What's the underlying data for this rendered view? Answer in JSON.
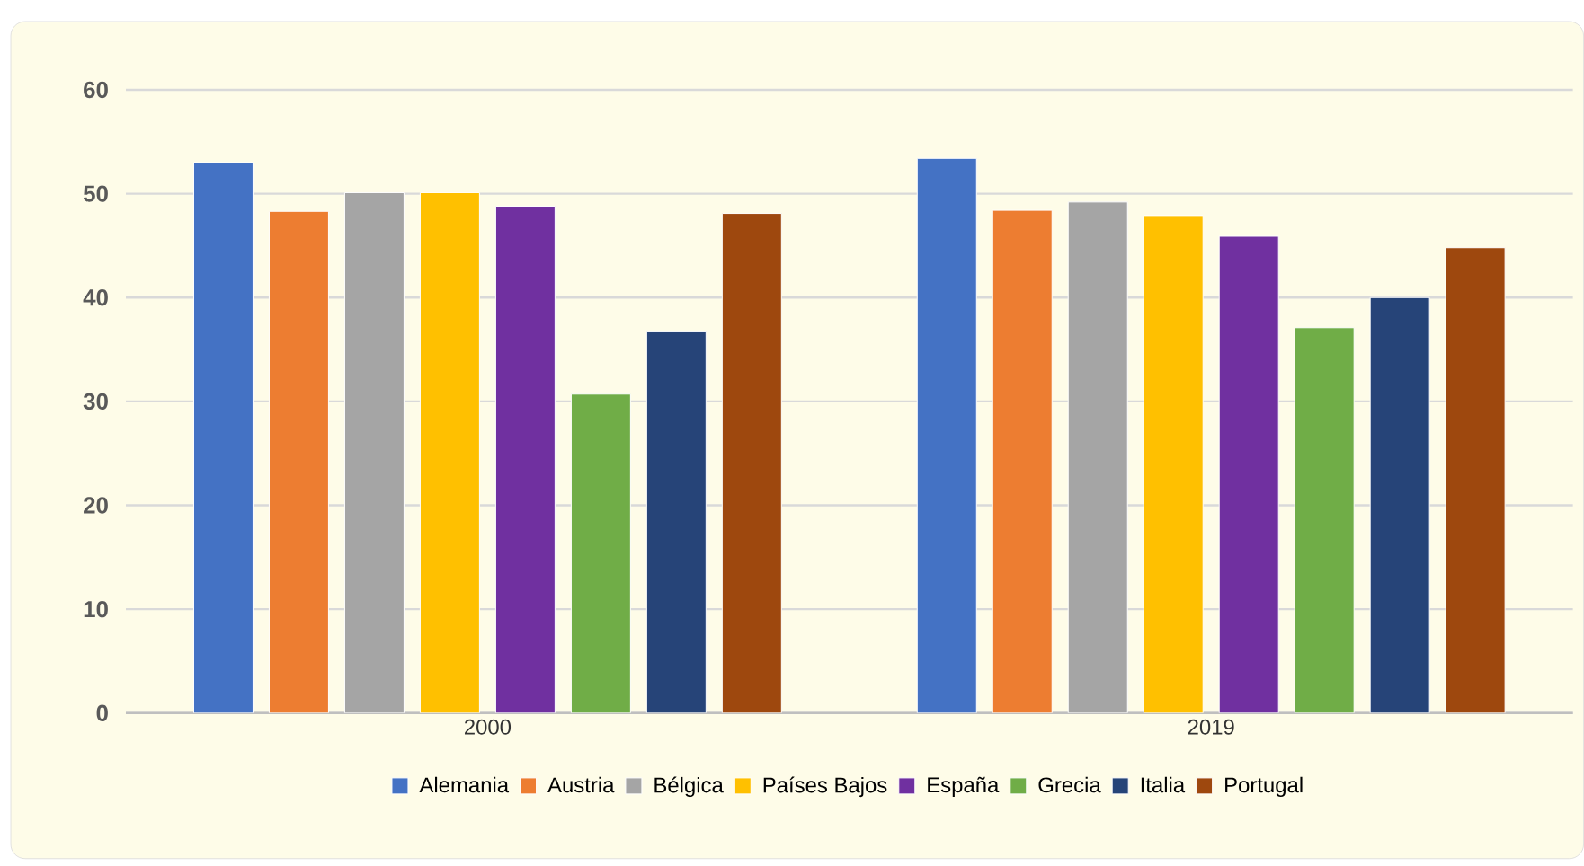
{
  "chart_data": {
    "type": "bar",
    "categories": [
      "2000",
      "2019"
    ],
    "series": [
      {
        "name": "Alemania",
        "color": "#4472c4",
        "values": [
          53.0,
          53.4
        ]
      },
      {
        "name": "Austria",
        "color": "#ed7d31",
        "values": [
          48.3,
          48.4
        ]
      },
      {
        "name": "Bélgica",
        "color": "#a5a5a5",
        "values": [
          50.1,
          49.2
        ]
      },
      {
        "name": "Países Bajos",
        "color": "#ffc000",
        "values": [
          50.1,
          47.9
        ]
      },
      {
        "name": "España",
        "color": "#7030a0",
        "values": [
          48.8,
          45.9
        ]
      },
      {
        "name": "Grecia",
        "color": "#70ad47",
        "values": [
          30.7,
          37.1
        ]
      },
      {
        "name": "Italia",
        "color": "#264478",
        "values": [
          36.7,
          40.0
        ]
      },
      {
        "name": "Portugal",
        "color": "#9e480e",
        "values": [
          48.1,
          44.8
        ]
      }
    ],
    "ylim": [
      0,
      60
    ],
    "yticks": [
      0,
      10,
      20,
      30,
      40,
      50,
      60
    ],
    "grid": "y",
    "legend": "bottom"
  }
}
